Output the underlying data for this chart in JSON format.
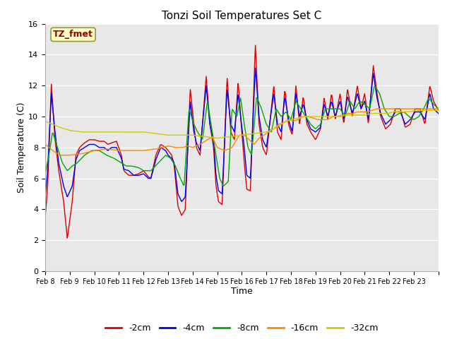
{
  "title": "Tonzi Soil Temperatures Set C",
  "xlabel": "Time",
  "ylabel": "Soil Temperature (C)",
  "ylim": [
    0,
    16
  ],
  "yticks": [
    0,
    2,
    4,
    6,
    8,
    10,
    12,
    14,
    16
  ],
  "date_labels": [
    "Feb 8",
    "Feb 9",
    "Feb 10",
    "Feb 11",
    "Feb 12",
    "Feb 13",
    "Feb 14",
    "Feb 15",
    "Feb 16",
    "Feb 17",
    "Feb 18",
    "Feb 19",
    "Feb 20",
    "Feb 21",
    "Feb 22",
    "Feb 23"
  ],
  "annotation_text": "TZ_fmet",
  "annotation_bg": "#ffffcc",
  "annotation_fg": "#990000",
  "annotation_border": "#999933",
  "colors": {
    "-2cm": "#dd0000",
    "-4cm": "#0000ee",
    "-8cm": "#00aa00",
    "-16cm": "#ff8800",
    "-32cm": "#cccc00"
  },
  "legend_labels": [
    "-2cm",
    "-4cm",
    "-8cm",
    "-16cm",
    "-32cm"
  ],
  "fig_bg": "#ffffff",
  "plot_bg": "#e8e8e8",
  "grid_color": "#ffffff"
}
